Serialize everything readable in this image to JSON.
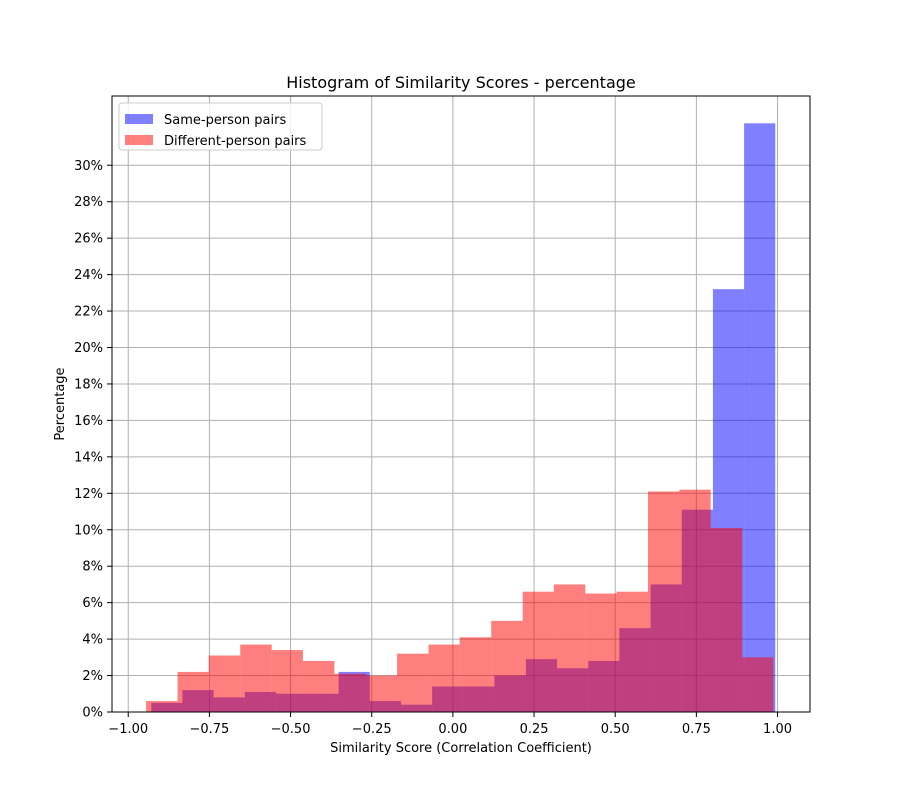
{
  "chart_data": {
    "type": "bar",
    "title": "Histogram of Similarity Scores - percentage",
    "xlabel": "Similarity Score (Correlation Coefficient)",
    "ylabel": "Percentage",
    "xlim": [
      -1.05,
      1.1
    ],
    "ylim": [
      0,
      0.338
    ],
    "grid": true,
    "legend_position": "top-left",
    "x_ticks": [
      -1.0,
      -0.75,
      -0.5,
      -0.25,
      0.0,
      0.25,
      0.5,
      0.75,
      1.0
    ],
    "x_tick_labels": [
      "−1.00",
      "−0.75",
      "−0.50",
      "−0.25",
      "0.00",
      "0.25",
      "0.50",
      "0.75",
      "1.00"
    ],
    "y_ticks": [
      0,
      0.02,
      0.04,
      0.06,
      0.08,
      0.1,
      0.12,
      0.14,
      0.16,
      0.18,
      0.2,
      0.22,
      0.24,
      0.26,
      0.28,
      0.3
    ],
    "y_tick_labels": [
      "0%",
      "2%",
      "4%",
      "6%",
      "8%",
      "10%",
      "12%",
      "14%",
      "16%",
      "18%",
      "20%",
      "22%",
      "24%",
      "26%",
      "28%",
      "30%"
    ],
    "series": [
      {
        "name": "Same-person pairs",
        "color": "#0000ff",
        "opacity": 0.5,
        "bin_edges": [
          -0.929,
          -0.833,
          -0.737,
          -0.641,
          -0.544,
          -0.448,
          -0.352,
          -0.256,
          -0.16,
          -0.064,
          0.032,
          0.128,
          0.225,
          0.321,
          0.417,
          0.513,
          0.609,
          0.705,
          0.801,
          0.897,
          0.993
        ],
        "values": [
          0.005,
          0.012,
          0.008,
          0.011,
          0.01,
          0.01,
          0.022,
          0.006,
          0.004,
          0.014,
          0.014,
          0.02,
          0.029,
          0.024,
          0.028,
          0.046,
          0.07,
          0.111,
          0.232,
          0.323
        ]
      },
      {
        "name": "Different-person pairs",
        "color": "#ff0000",
        "opacity": 0.5,
        "bin_edges": [
          -0.945,
          -0.848,
          -0.752,
          -0.655,
          -0.558,
          -0.462,
          -0.365,
          -0.268,
          -0.172,
          -0.075,
          0.021,
          0.118,
          0.215,
          0.311,
          0.408,
          0.504,
          0.601,
          0.698,
          0.794,
          0.891,
          0.987
        ],
        "values": [
          0.006,
          0.022,
          0.031,
          0.037,
          0.034,
          0.028,
          0.021,
          0.02,
          0.032,
          0.037,
          0.041,
          0.05,
          0.066,
          0.07,
          0.065,
          0.066,
          0.121,
          0.122,
          0.101,
          0.03
        ]
      }
    ]
  }
}
